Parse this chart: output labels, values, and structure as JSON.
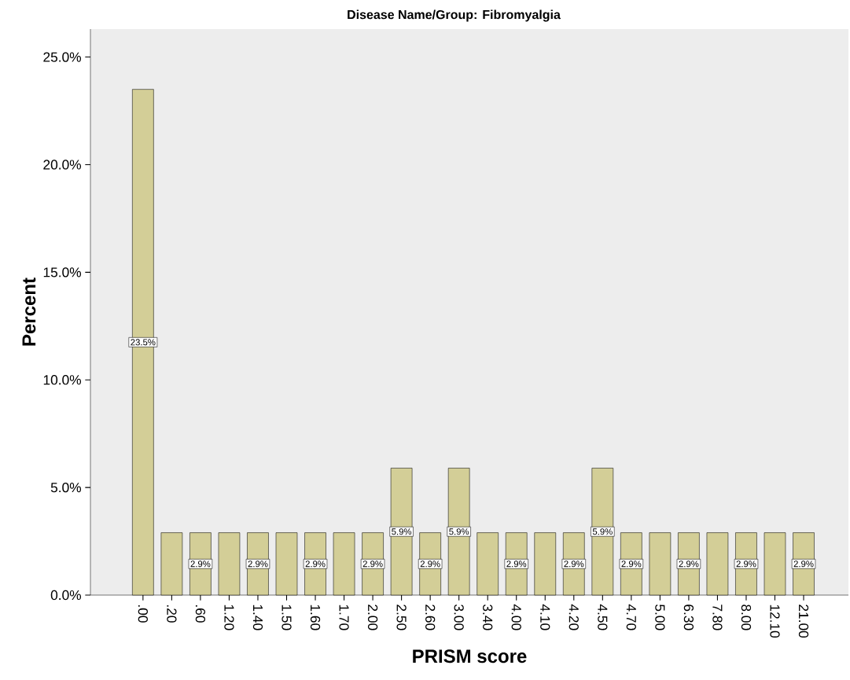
{
  "chart_data": {
    "type": "bar",
    "title": "Disease Name/Group: Fibromyalgia",
    "xlabel": "PRISM score",
    "ylabel": "Percent",
    "categories": [
      ".00",
      ".20",
      ".60",
      "1.20",
      "1.40",
      "1.50",
      "1.60",
      "1.70",
      "2.00",
      "2.50",
      "2.60",
      "3.00",
      "3.40",
      "4.00",
      "4.10",
      "4.20",
      "4.50",
      "4.70",
      "5.00",
      "6.30",
      "7.80",
      "8.00",
      "12.10",
      "21.00"
    ],
    "values": [
      23.5,
      2.9,
      2.9,
      2.9,
      2.9,
      2.9,
      2.9,
      2.9,
      2.9,
      5.9,
      2.9,
      5.9,
      2.9,
      2.9,
      2.9,
      2.9,
      5.9,
      2.9,
      2.9,
      2.9,
      2.9,
      2.9,
      2.9,
      2.9
    ],
    "value_labels": [
      "23.5%",
      null,
      "2.9%",
      null,
      "2.9%",
      null,
      "2.9%",
      null,
      "2.9%",
      "5.9%",
      "2.9%",
      "5.9%",
      null,
      "2.9%",
      null,
      "2.9%",
      "5.9%",
      "2.9%",
      null,
      "2.9%",
      null,
      "2.9%",
      null,
      "2.9%"
    ],
    "color": "#d3ce97",
    "ylim": [
      0,
      26.3
    ],
    "yticks": [
      {
        "value": 0,
        "label": "0.0%"
      },
      {
        "value": 5,
        "label": "5.0%"
      },
      {
        "value": 10,
        "label": "10.0%"
      },
      {
        "value": 15,
        "label": "15.0%"
      },
      {
        "value": 20,
        "label": "20.0%"
      },
      {
        "value": 25,
        "label": "25.0%"
      }
    ],
    "grid": false
  }
}
